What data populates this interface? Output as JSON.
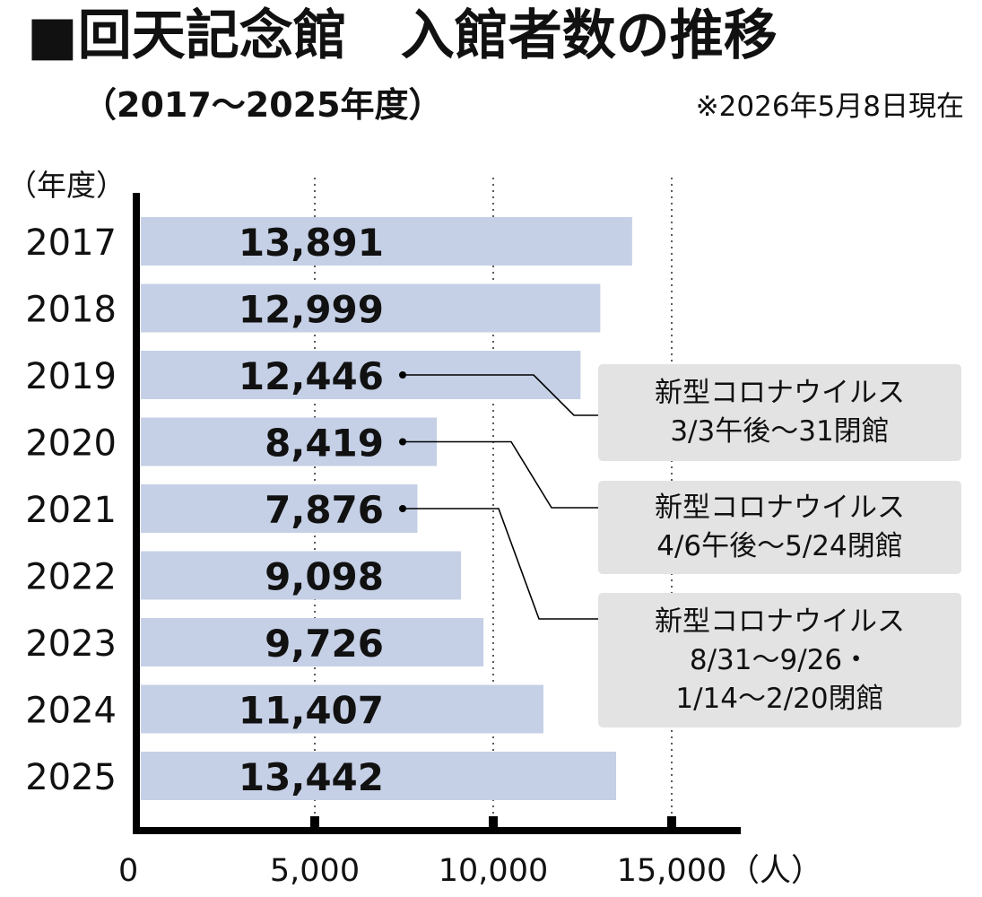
{
  "title": "■回天記念館　入館者数の推移",
  "subtitle": "（2017～2025年度）",
  "as_of": "※2026年5月8日現在",
  "chart_data": {
    "type": "bar",
    "orientation": "horizontal",
    "ylabel": "（年度）",
    "xlabel": "（人）",
    "categories": [
      "2017",
      "2018",
      "2019",
      "2020",
      "2021",
      "2022",
      "2023",
      "2024",
      "2025"
    ],
    "values": [
      13891,
      12999,
      12446,
      8419,
      7876,
      9098,
      9726,
      11407,
      13442
    ],
    "value_labels": [
      "13,891",
      "12,999",
      "12,446",
      "8,419",
      "7,876",
      "9,098",
      "9,726",
      "11,407",
      "13,442"
    ],
    "xlim": [
      0,
      17000
    ],
    "xticks": [
      0,
      5000,
      10000,
      15000
    ],
    "xtick_labels": [
      "0",
      "5,000",
      "10,000",
      "15,000"
    ],
    "grid": "vertical dotted",
    "bar_color": "#c5d0e6",
    "annotations": [
      {
        "category": "2019",
        "lines": [
          "新型コロナウイルス",
          "3/3午後～31閉館"
        ]
      },
      {
        "category": "2020",
        "lines": [
          "新型コロナウイルス",
          "4/6午後～5/24閉館"
        ]
      },
      {
        "category": "2021",
        "lines": [
          "新型コロナウイルス",
          "8/31～9/26・",
          "1/14～2/20閉館"
        ]
      }
    ]
  }
}
